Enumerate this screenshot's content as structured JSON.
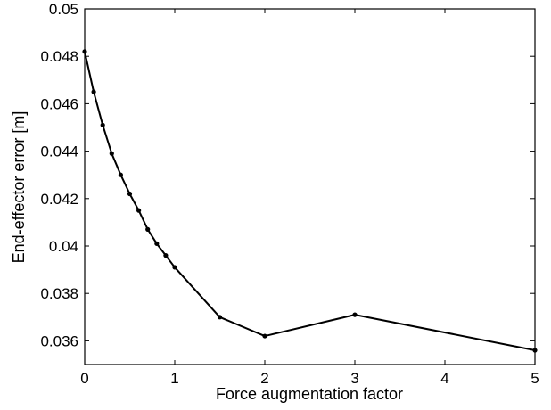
{
  "chart_data": {
    "type": "line",
    "title": "",
    "xlabel": "Force augmentation factor",
    "ylabel": "End-effector error [m]",
    "xlim": [
      0,
      5
    ],
    "ylim": [
      0.035,
      0.05
    ],
    "grid": false,
    "line_color": "#000000",
    "marker": "dot",
    "x_ticks": [
      0,
      1,
      2,
      3,
      4,
      5
    ],
    "x_tick_labels": [
      "0",
      "1",
      "2",
      "3",
      "4",
      "5"
    ],
    "y_ticks": [
      0.036,
      0.038,
      0.04,
      0.042,
      0.044,
      0.046,
      0.048,
      0.05
    ],
    "y_tick_labels": [
      "0.036",
      "0.038",
      "0.04",
      "0.042",
      "0.044",
      "0.046",
      "0.048",
      "0.05"
    ],
    "series": [
      {
        "x": [
          0,
          0.1,
          0.2,
          0.3,
          0.4,
          0.5,
          0.6,
          0.7,
          0.8,
          0.9,
          1.0,
          1.5,
          2,
          3,
          5
        ],
        "y": [
          0.0482,
          0.0465,
          0.0451,
          0.0439,
          0.043,
          0.0422,
          0.0415,
          0.0407,
          0.0401,
          0.0396,
          0.0391,
          0.037,
          0.0362,
          0.0371,
          0.0356
        ]
      }
    ]
  }
}
